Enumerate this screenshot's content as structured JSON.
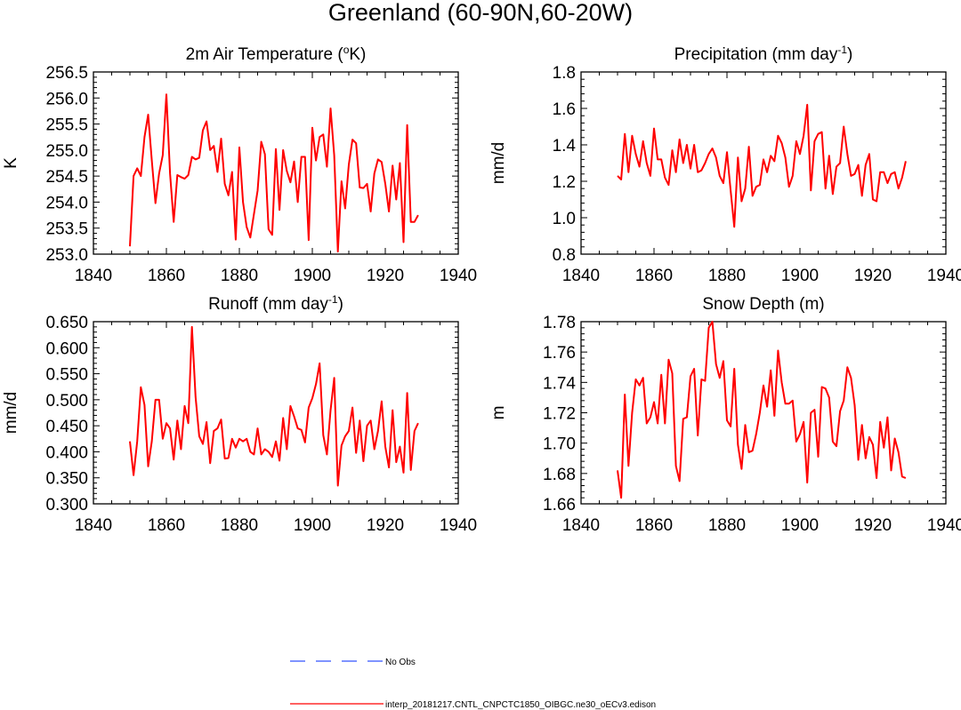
{
  "page": {
    "title": "Greenland (60-90N,60-20W)",
    "colors": {
      "series": "#ff0000",
      "obs": "#3355ff",
      "frame": "#000000"
    }
  },
  "legend": {
    "items": [
      {
        "label": "No Obs",
        "style": "dashed",
        "color": "#3355ff"
      },
      {
        "label": "interp_20181217.CNTL_CNPCTC1850_OIBGC.ne30_oECv3.edison",
        "style": "solid",
        "color": "#ff0000"
      }
    ]
  },
  "chart_data": [
    {
      "type": "line",
      "title_main": "2m Air Temperature (",
      "title_sup": "o",
      "title_after": "K)",
      "ylabel": "K",
      "xlim": [
        1840,
        1940
      ],
      "ylim": [
        253.0,
        256.5
      ],
      "xticks": [
        1840,
        1860,
        1880,
        1900,
        1920,
        1940
      ],
      "yticks": [
        "253.0",
        "253.5",
        "254.0",
        "254.5",
        "255.0",
        "255.5",
        "256.0",
        "256.5"
      ],
      "x_start": 1850,
      "values": [
        253.15,
        254.5,
        254.65,
        254.5,
        255.25,
        255.68,
        254.8,
        253.98,
        254.55,
        254.9,
        256.07,
        254.55,
        253.62,
        254.52,
        254.48,
        254.45,
        254.52,
        254.87,
        254.82,
        254.85,
        255.38,
        255.55,
        255.0,
        255.08,
        254.58,
        255.22,
        254.35,
        254.13,
        254.58,
        253.28,
        255.05,
        254.0,
        253.52,
        253.32,
        253.77,
        254.22,
        255.16,
        254.92,
        253.48,
        253.37,
        255.02,
        253.85,
        255.0,
        254.6,
        254.38,
        254.78,
        254.0,
        254.87,
        254.87,
        253.27,
        255.43,
        254.8,
        255.25,
        255.3,
        254.68,
        255.8,
        254.9,
        253.05,
        254.4,
        253.88,
        254.72,
        255.2,
        255.13,
        254.28,
        254.27,
        254.35,
        253.82,
        254.55,
        254.82,
        254.77,
        254.35,
        253.82,
        254.7,
        254.05,
        254.75,
        253.23,
        255.48,
        253.62,
        253.62,
        253.75
      ]
    },
    {
      "type": "line",
      "title_main": "Precipitation (mm day",
      "title_sup": "-1",
      "title_after": ")",
      "ylabel": "mm/d",
      "xlim": [
        1840,
        1940
      ],
      "ylim": [
        0.8,
        1.8
      ],
      "xticks": [
        1840,
        1860,
        1880,
        1900,
        1920,
        1940
      ],
      "yticks": [
        "0.8",
        "1.0",
        "1.2",
        "1.4",
        "1.6",
        "1.8"
      ],
      "x_start": 1850,
      "values": [
        1.23,
        1.21,
        1.46,
        1.25,
        1.45,
        1.35,
        1.28,
        1.42,
        1.3,
        1.23,
        1.49,
        1.32,
        1.32,
        1.22,
        1.18,
        1.37,
        1.25,
        1.43,
        1.3,
        1.4,
        1.27,
        1.4,
        1.25,
        1.26,
        1.3,
        1.35,
        1.38,
        1.33,
        1.23,
        1.19,
        1.36,
        1.15,
        0.95,
        1.33,
        1.09,
        1.16,
        1.39,
        1.12,
        1.17,
        1.18,
        1.32,
        1.25,
        1.34,
        1.31,
        1.45,
        1.41,
        1.33,
        1.17,
        1.23,
        1.42,
        1.35,
        1.45,
        1.62,
        1.15,
        1.42,
        1.46,
        1.47,
        1.16,
        1.34,
        1.13,
        1.28,
        1.3,
        1.5,
        1.35,
        1.23,
        1.24,
        1.29,
        1.12,
        1.29,
        1.35,
        1.1,
        1.09,
        1.25,
        1.25,
        1.19,
        1.24,
        1.25,
        1.16,
        1.22,
        1.31
      ]
    },
    {
      "type": "line",
      "title_main": "Runoff (mm day",
      "title_sup": "-1",
      "title_after": ")",
      "ylabel": "mm/d",
      "xlim": [
        1840,
        1940
      ],
      "ylim": [
        0.3,
        0.65
      ],
      "xticks": [
        1840,
        1860,
        1880,
        1900,
        1920,
        1940
      ],
      "yticks": [
        "0.300",
        "0.350",
        "0.400",
        "0.450",
        "0.500",
        "0.550",
        "0.600",
        "0.650"
      ],
      "x_start": 1850,
      "values": [
        0.42,
        0.355,
        0.42,
        0.524,
        0.49,
        0.372,
        0.42,
        0.5,
        0.5,
        0.425,
        0.455,
        0.445,
        0.385,
        0.46,
        0.405,
        0.488,
        0.455,
        0.64,
        0.505,
        0.43,
        0.415,
        0.457,
        0.378,
        0.44,
        0.445,
        0.462,
        0.387,
        0.388,
        0.425,
        0.408,
        0.425,
        0.42,
        0.425,
        0.4,
        0.395,
        0.445,
        0.395,
        0.405,
        0.4,
        0.39,
        0.42,
        0.383,
        0.465,
        0.405,
        0.488,
        0.468,
        0.445,
        0.442,
        0.418,
        0.485,
        0.503,
        0.53,
        0.57,
        0.432,
        0.395,
        0.48,
        0.542,
        0.335,
        0.412,
        0.43,
        0.44,
        0.485,
        0.398,
        0.46,
        0.382,
        0.45,
        0.46,
        0.405,
        0.44,
        0.497,
        0.41,
        0.37,
        0.48,
        0.38,
        0.41,
        0.36,
        0.513,
        0.365,
        0.44,
        0.455
      ]
    },
    {
      "type": "line",
      "title_main": "Snow Depth (m)",
      "title_sup": "",
      "title_after": "",
      "ylabel": "m",
      "xlim": [
        1840,
        1940
      ],
      "ylim": [
        1.66,
        1.78
      ],
      "xticks": [
        1840,
        1860,
        1880,
        1900,
        1920,
        1940
      ],
      "yticks": [
        "1.66",
        "1.68",
        "1.70",
        "1.72",
        "1.74",
        "1.76",
        "1.78"
      ],
      "x_start": 1850,
      "values": [
        1.682,
        1.664,
        1.732,
        1.685,
        1.72,
        1.742,
        1.738,
        1.743,
        1.713,
        1.717,
        1.727,
        1.713,
        1.745,
        1.713,
        1.755,
        1.746,
        1.685,
        1.675,
        1.716,
        1.717,
        1.744,
        1.749,
        1.705,
        1.742,
        1.741,
        1.776,
        1.78,
        1.752,
        1.743,
        1.754,
        1.715,
        1.711,
        1.749,
        1.699,
        1.683,
        1.712,
        1.694,
        1.695,
        1.706,
        1.72,
        1.738,
        1.724,
        1.748,
        1.718,
        1.761,
        1.74,
        1.726,
        1.726,
        1.728,
        1.701,
        1.706,
        1.714,
        1.674,
        1.72,
        1.722,
        1.691,
        1.737,
        1.736,
        1.73,
        1.701,
        1.698,
        1.721,
        1.728,
        1.75,
        1.743,
        1.725,
        1.689,
        1.712,
        1.69,
        1.704,
        1.699,
        1.677,
        1.714,
        1.697,
        1.717,
        1.682,
        1.703,
        1.694,
        1.678,
        1.677
      ]
    }
  ]
}
